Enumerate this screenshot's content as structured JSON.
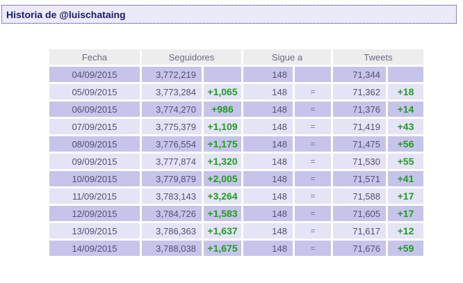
{
  "page": {
    "title": "Historia de @luischataing"
  },
  "colors": {
    "title_text": "#1a1a70",
    "title_bar_bg": "#eaeaf8",
    "title_bar_border": "#24247c",
    "header_bg": "#ededed",
    "header_text": "#6d6a85",
    "row_dark_bg": "#c6c4ea",
    "row_light_bg": "#e5e4f6",
    "cell_text": "#55516e",
    "delta_positive": "#1f9e1f",
    "delta_equal_text": "#76729a"
  },
  "table": {
    "headers": {
      "fecha": "Fecha",
      "seguidores": "Seguidores",
      "sigue_a": "Sigue a",
      "tweets": "Tweets"
    },
    "rows": [
      {
        "fecha": "04/09/2015",
        "seguidores": "3,772,219",
        "seguidores_delta": "",
        "sigue_a": "148",
        "sigue_a_delta": "",
        "tweets": "71,344",
        "tweets_delta": ""
      },
      {
        "fecha": "05/09/2015",
        "seguidores": "3,773,284",
        "seguidores_delta": "+1,065",
        "sigue_a": "148",
        "sigue_a_delta": "=",
        "tweets": "71,362",
        "tweets_delta": "+18"
      },
      {
        "fecha": "06/09/2015",
        "seguidores": "3,774,270",
        "seguidores_delta": "+986",
        "sigue_a": "148",
        "sigue_a_delta": "=",
        "tweets": "71,376",
        "tweets_delta": "+14"
      },
      {
        "fecha": "07/09/2015",
        "seguidores": "3,775,379",
        "seguidores_delta": "+1,109",
        "sigue_a": "148",
        "sigue_a_delta": "=",
        "tweets": "71,419",
        "tweets_delta": "+43"
      },
      {
        "fecha": "08/09/2015",
        "seguidores": "3,776,554",
        "seguidores_delta": "+1,175",
        "sigue_a": "148",
        "sigue_a_delta": "=",
        "tweets": "71,475",
        "tweets_delta": "+56"
      },
      {
        "fecha": "09/09/2015",
        "seguidores": "3,777,874",
        "seguidores_delta": "+1,320",
        "sigue_a": "148",
        "sigue_a_delta": "=",
        "tweets": "71,530",
        "tweets_delta": "+55"
      },
      {
        "fecha": "10/09/2015",
        "seguidores": "3,779,879",
        "seguidores_delta": "+2,005",
        "sigue_a": "148",
        "sigue_a_delta": "=",
        "tweets": "71,571",
        "tweets_delta": "+41"
      },
      {
        "fecha": "11/09/2015",
        "seguidores": "3,783,143",
        "seguidores_delta": "+3,264",
        "sigue_a": "148",
        "sigue_a_delta": "=",
        "tweets": "71,588",
        "tweets_delta": "+17"
      },
      {
        "fecha": "12/09/2015",
        "seguidores": "3,784,726",
        "seguidores_delta": "+1,583",
        "sigue_a": "148",
        "sigue_a_delta": "=",
        "tweets": "71,605",
        "tweets_delta": "+17"
      },
      {
        "fecha": "13/09/2015",
        "seguidores": "3,786,363",
        "seguidores_delta": "+1,637",
        "sigue_a": "148",
        "sigue_a_delta": "=",
        "tweets": "71,617",
        "tweets_delta": "+12"
      },
      {
        "fecha": "14/09/2015",
        "seguidores": "3,788,038",
        "seguidores_delta": "+1,675",
        "sigue_a": "148",
        "sigue_a_delta": "=",
        "tweets": "71,676",
        "tweets_delta": "+59"
      }
    ]
  }
}
